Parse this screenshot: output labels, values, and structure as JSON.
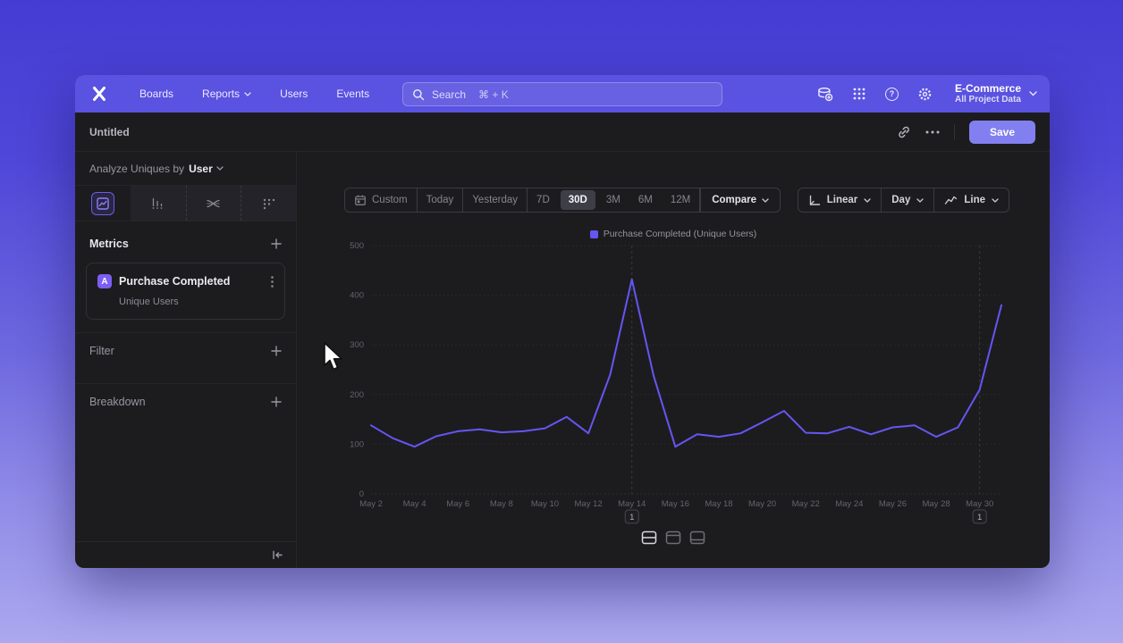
{
  "nav": {
    "brand": "Mixpanel",
    "items": [
      {
        "label": "Boards",
        "chevron": false
      },
      {
        "label": "Reports",
        "chevron": true
      },
      {
        "label": "Users",
        "chevron": false
      },
      {
        "label": "Events",
        "chevron": false
      }
    ],
    "search_placeholder": "Search",
    "search_shortcut": "⌘ + K",
    "right_icons": [
      "data-stack",
      "apps-grid",
      "help",
      "settings"
    ],
    "help_glyph": "?",
    "project_name": "E-Commerce",
    "project_scope": "All Project Data"
  },
  "header": {
    "title": "Untitled",
    "save_label": "Save"
  },
  "sidebar": {
    "analyze_prefix": "Analyze Uniques by",
    "analyze_value": "User",
    "tabs": [
      "insights",
      "funnels",
      "flows",
      "retention"
    ],
    "selected_tab": "insights",
    "metrics_label": "Metrics",
    "metric": {
      "badge": "A",
      "name": "Purchase Completed",
      "type": "Unique Users"
    },
    "filter_label": "Filter",
    "breakdown_label": "Breakdown"
  },
  "toolbar": {
    "ranges": [
      "Custom",
      "Today",
      "Yesterday",
      "7D",
      "30D",
      "3M",
      "6M",
      "12M"
    ],
    "selected_range": "30D",
    "separators_after": [
      "Custom",
      "Today",
      "Yesterday",
      "12M"
    ],
    "compare_label": "Compare",
    "scale_label": "Linear",
    "interval_label": "Day",
    "chart_type_label": "Line"
  },
  "chart_data": {
    "type": "line",
    "legend": "Purchase Completed (Unique Users)",
    "line_color": "#6456f2",
    "x": [
      "May 2",
      "May 3",
      "May 4",
      "May 5",
      "May 6",
      "May 7",
      "May 8",
      "May 9",
      "May 10",
      "May 11",
      "May 12",
      "May 13",
      "May 14",
      "May 15",
      "May 16",
      "May 17",
      "May 18",
      "May 19",
      "May 20",
      "May 21",
      "May 22",
      "May 23",
      "May 24",
      "May 25",
      "May 26",
      "May 27",
      "May 28",
      "May 29",
      "May 30",
      "May 31"
    ],
    "values": [
      138,
      112,
      95,
      116,
      126,
      130,
      124,
      126,
      132,
      155,
      122,
      240,
      432,
      238,
      95,
      120,
      115,
      122,
      144,
      167,
      123,
      122,
      135,
      120,
      134,
      138,
      115,
      134,
      210,
      380
    ],
    "x_tick_labels": [
      "May 2",
      "May 4",
      "May 6",
      "May 8",
      "May 10",
      "May 12",
      "May 14",
      "May 16",
      "May 18",
      "May 20",
      "May 22",
      "May 24",
      "May 26",
      "May 28",
      "May 30"
    ],
    "y_ticks": [
      0,
      100,
      200,
      300,
      400,
      500
    ],
    "ylim": [
      0,
      500
    ],
    "grid": "horizontal-dotted",
    "legend_position": "top-center",
    "annotations": [
      {
        "label": "1",
        "x_index": 12
      },
      {
        "label": "1",
        "x_index": 28
      }
    ]
  },
  "layout_toggles": [
    "split-view",
    "chart-only",
    "table-only"
  ],
  "selected_layout": "split-view"
}
